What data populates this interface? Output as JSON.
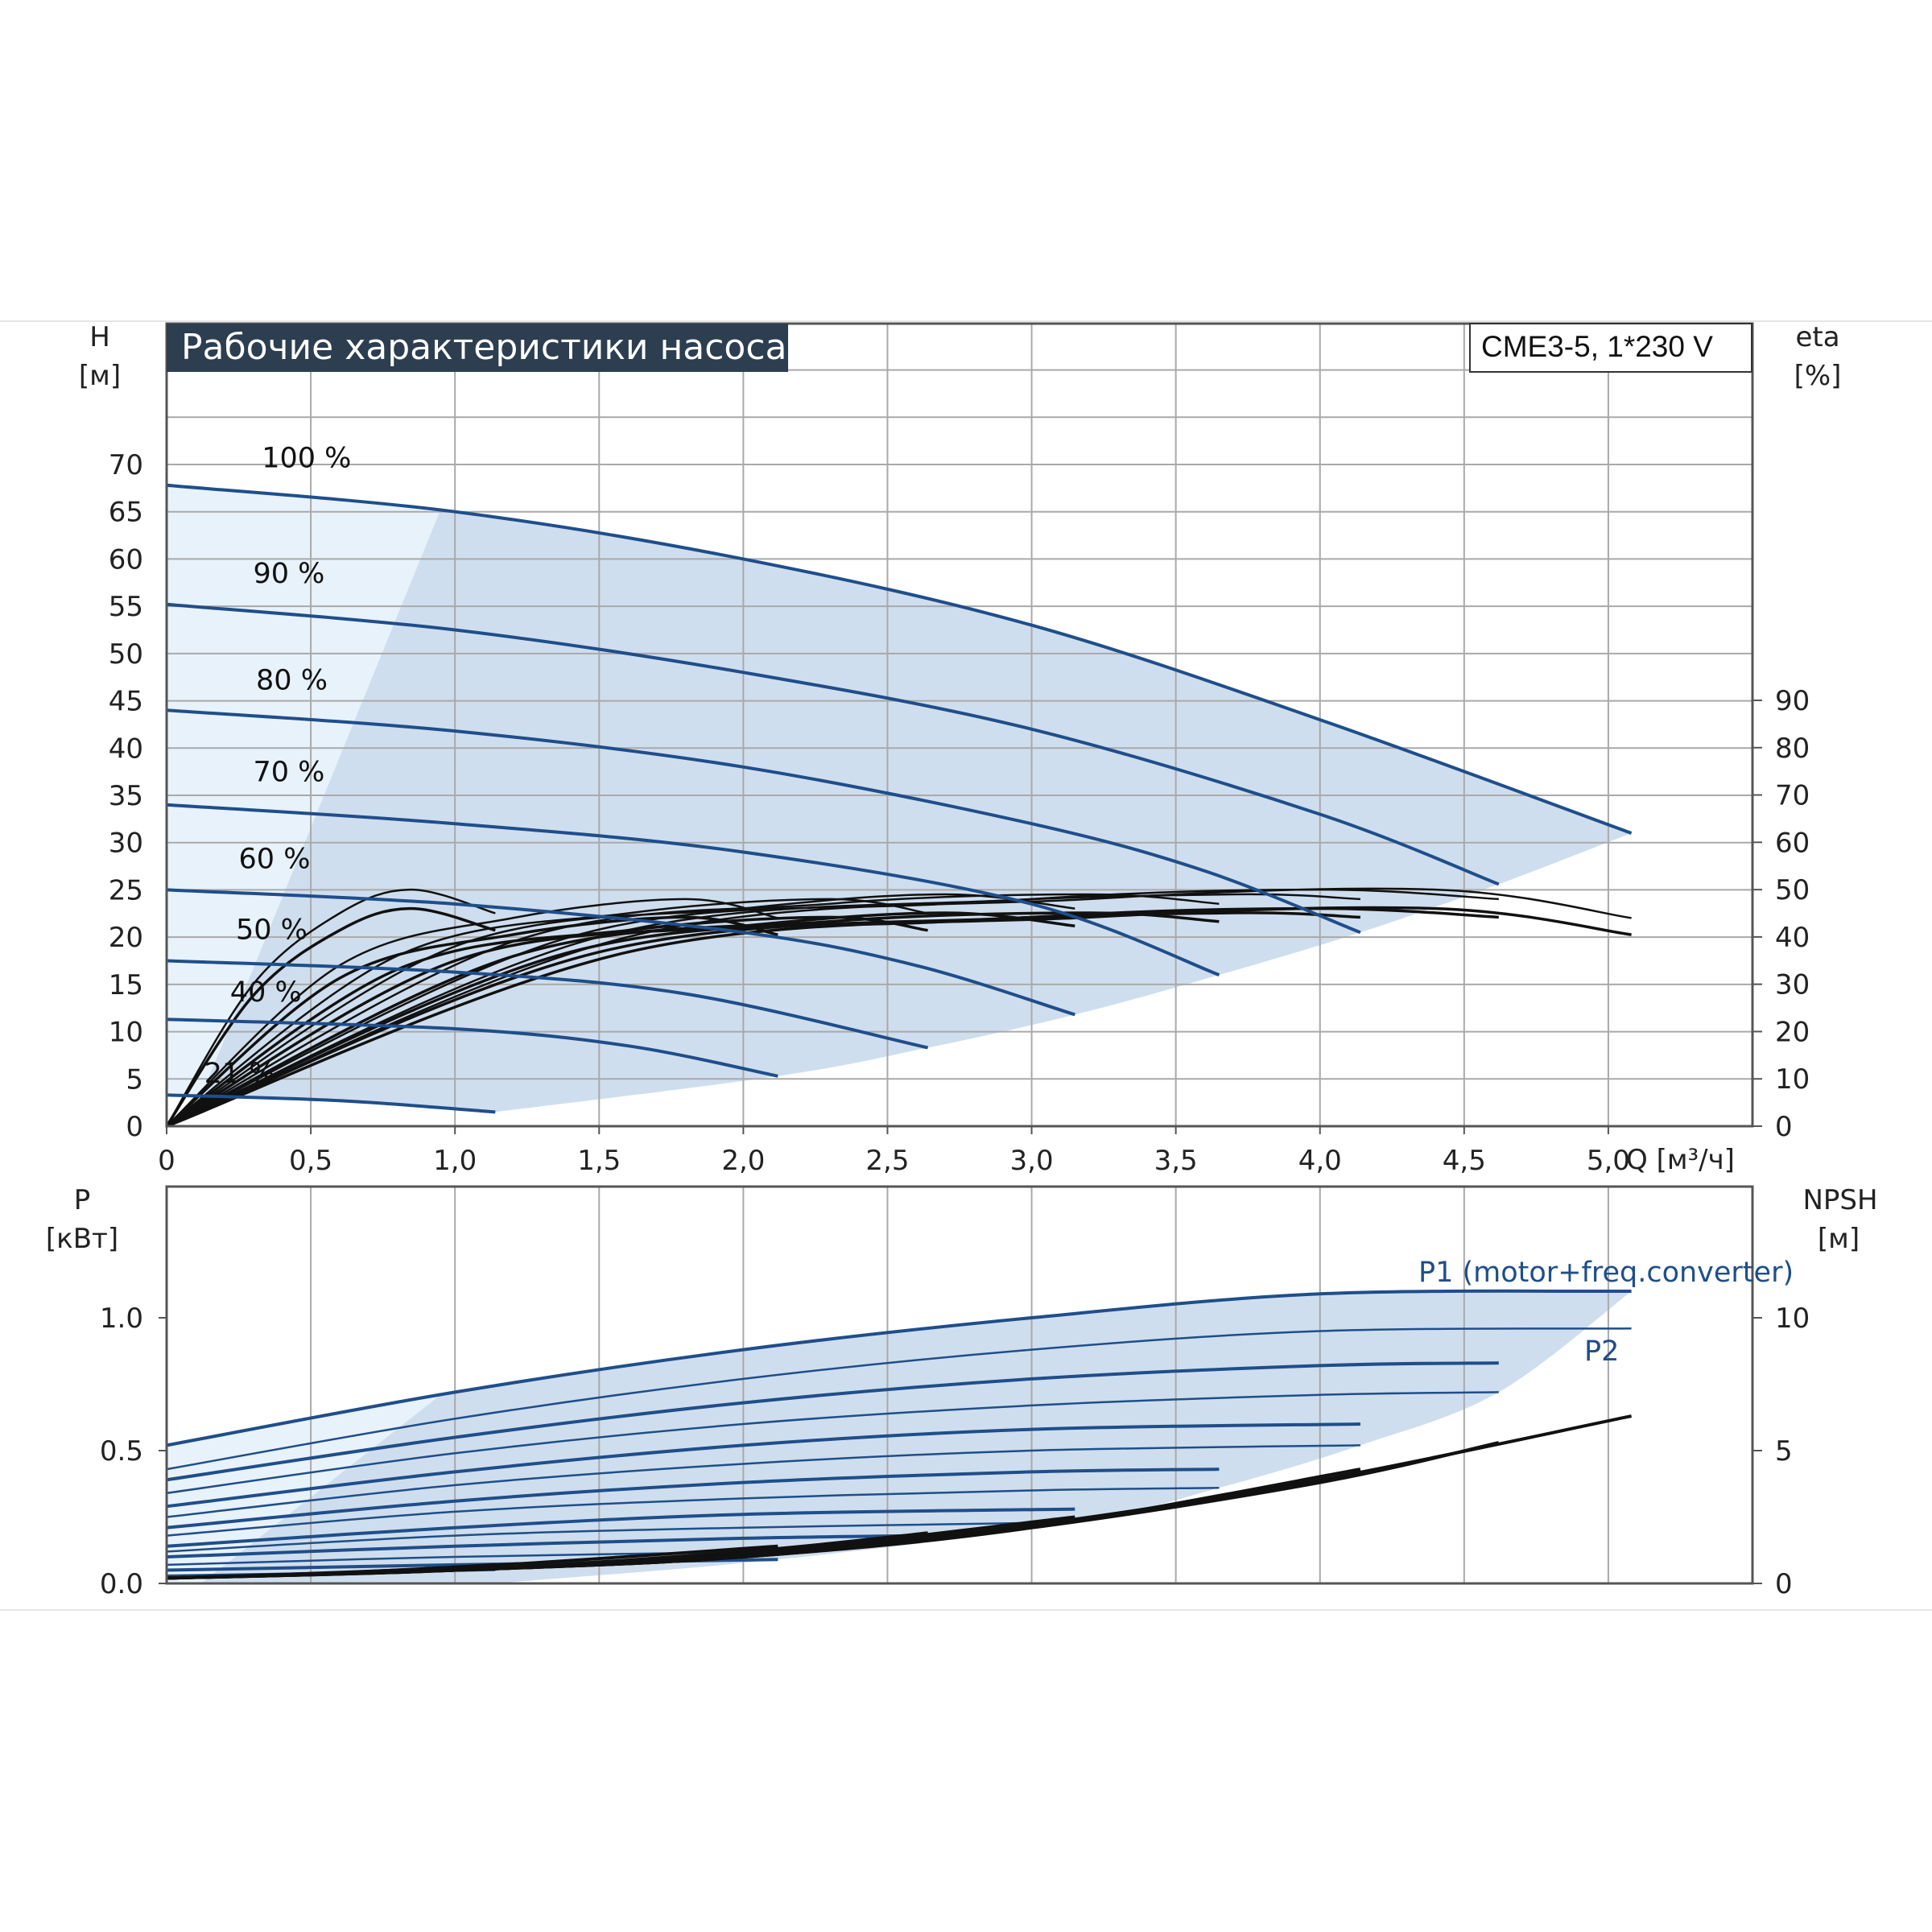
{
  "chart_data": [
    {
      "type": "line",
      "title": "Рабочие характеристики насоса",
      "model": "CME3-5, 1*230 V",
      "ylabel": "H",
      "yunit": "[м]",
      "y2label": "eta",
      "y2unit": "[%]",
      "xlabel": "Q [м³/ч]",
      "xlim": [
        0,
        5.5
      ],
      "ylim": [
        0,
        70
      ],
      "y2lim": [
        0,
        90
      ],
      "grid": true,
      "x_ticks": [
        "0",
        "0,5",
        "1,0",
        "1,5",
        "2,0",
        "2,5",
        "3,0",
        "3,5",
        "4,0",
        "4,5",
        "5,0"
      ],
      "y_ticks": [
        "0",
        "5",
        "10",
        "15",
        "20",
        "25",
        "30",
        "35",
        "40",
        "45",
        "50",
        "55",
        "60",
        "65",
        "70"
      ],
      "y2_ticks": [
        "0",
        "10",
        "20",
        "30",
        "40",
        "50",
        "60",
        "70",
        "80",
        "90"
      ],
      "head_curves": [
        {
          "label": "100 %",
          "x": [
            0,
            1,
            2,
            3,
            4,
            5.08
          ],
          "y": [
            67.8,
            65,
            60,
            53,
            43,
            31
          ]
        },
        {
          "label": "90 %",
          "x": [
            0,
            1,
            2,
            3,
            4,
            4.62
          ],
          "y": [
            55.2,
            52.5,
            48,
            42,
            33,
            25.6
          ]
        },
        {
          "label": "80 %",
          "x": [
            0,
            1,
            2,
            3,
            3.6,
            4.14
          ],
          "y": [
            44,
            41.8,
            38,
            32,
            27,
            20.5
          ]
        },
        {
          "label": "70 %",
          "x": [
            0,
            1,
            2,
            3,
            3.65
          ],
          "y": [
            34,
            32,
            29,
            23.5,
            16
          ]
        },
        {
          "label": "60 %",
          "x": [
            0,
            1,
            2,
            2.6,
            3.15
          ],
          "y": [
            25,
            23.5,
            20.5,
            17,
            11.8
          ]
        },
        {
          "label": "50 %",
          "x": [
            0,
            1,
            1.8,
            2.64
          ],
          "y": [
            17.5,
            16.3,
            14,
            8.3
          ]
        },
        {
          "label": "40 %",
          "x": [
            0,
            1,
            1.6,
            2.12
          ],
          "y": [
            11.3,
            10.3,
            8.5,
            5.3
          ]
        },
        {
          "label": "21 %",
          "x": [
            0,
            0.6,
            1.14
          ],
          "y": [
            3.3,
            2.7,
            1.5
          ]
        }
      ],
      "efficiency_curves": [
        {
          "x": [
            0,
            0.3,
            0.6,
            0.85,
            1.14
          ],
          "eta": [
            0,
            30,
            45,
            50,
            45
          ]
        },
        {
          "x": [
            0,
            0.6,
            1.2,
            1.8,
            2.12
          ],
          "eta": [
            0,
            34,
            44,
            48,
            44
          ]
        },
        {
          "x": [
            0,
            0.8,
            1.6,
            2.3,
            2.64
          ],
          "eta": [
            0,
            36,
            45,
            48,
            45
          ]
        },
        {
          "x": [
            0,
            1,
            2,
            2.7,
            3.15
          ],
          "eta": [
            0,
            38,
            46,
            49,
            46
          ]
        },
        {
          "x": [
            0,
            1.2,
            2.3,
            3.2,
            3.65
          ],
          "eta": [
            0,
            39,
            47,
            49,
            47
          ]
        },
        {
          "x": [
            0,
            1.4,
            2.7,
            3.7,
            4.14
          ],
          "eta": [
            0,
            40,
            47,
            49,
            48
          ]
        },
        {
          "x": [
            0,
            1.5,
            3,
            4,
            4.62
          ],
          "eta": [
            0,
            40,
            48,
            50,
            48
          ]
        },
        {
          "x": [
            0,
            1.6,
            3.2,
            4.4,
            5.08
          ],
          "eta": [
            0,
            40,
            48,
            50,
            44
          ]
        }
      ]
    },
    {
      "type": "line",
      "ylabel": "P",
      "yunit": "[кВт]",
      "y2label": "NPSH",
      "y2unit": "[м]",
      "xlim": [
        0,
        5.5
      ],
      "ylim": [
        0,
        1.5
      ],
      "y2lim": [
        0,
        15
      ],
      "grid": true,
      "y_ticks": [
        "0.0",
        "0.5",
        "1.0"
      ],
      "y2_ticks": [
        "0",
        "5",
        "10"
      ],
      "series_labels": [
        "P1 (motor+freq.converter)",
        "P2"
      ],
      "power_curves": [
        {
          "x": [
            0,
            1,
            2,
            3,
            4,
            5.08
          ],
          "y": [
            0.52,
            0.72,
            0.88,
            1.0,
            1.09,
            1.1
          ]
        },
        {
          "x": [
            0,
            1,
            2,
            3,
            4,
            5.08
          ],
          "y": [
            0.43,
            0.62,
            0.77,
            0.88,
            0.95,
            0.96
          ]
        },
        {
          "x": [
            0,
            1,
            2,
            3,
            4,
            4.62
          ],
          "y": [
            0.39,
            0.55,
            0.68,
            0.77,
            0.82,
            0.83
          ]
        },
        {
          "x": [
            0,
            1,
            2,
            3,
            4,
            4.62
          ],
          "y": [
            0.34,
            0.49,
            0.6,
            0.67,
            0.71,
            0.72
          ]
        },
        {
          "x": [
            0,
            1,
            2,
            3,
            4.14
          ],
          "y": [
            0.29,
            0.42,
            0.52,
            0.58,
            0.6
          ]
        },
        {
          "x": [
            0,
            1,
            2,
            3,
            4.14
          ],
          "y": [
            0.25,
            0.37,
            0.45,
            0.5,
            0.52
          ]
        },
        {
          "x": [
            0,
            1,
            2,
            3,
            3.65
          ],
          "y": [
            0.21,
            0.31,
            0.38,
            0.42,
            0.43
          ]
        },
        {
          "x": [
            0,
            1,
            2,
            3,
            3.65
          ],
          "y": [
            0.18,
            0.27,
            0.32,
            0.35,
            0.36
          ]
        },
        {
          "x": [
            0,
            1,
            2,
            3.15
          ],
          "y": [
            0.14,
            0.21,
            0.26,
            0.28
          ]
        },
        {
          "x": [
            0,
            1,
            2,
            3.15
          ],
          "y": [
            0.12,
            0.18,
            0.21,
            0.23
          ]
        },
        {
          "x": [
            0,
            1,
            2,
            2.64
          ],
          "y": [
            0.1,
            0.14,
            0.17,
            0.18
          ]
        },
        {
          "x": [
            0,
            1,
            2.12
          ],
          "y": [
            0.07,
            0.1,
            0.12
          ]
        },
        {
          "x": [
            0,
            1,
            2.12
          ],
          "y": [
            0.05,
            0.07,
            0.09
          ]
        },
        {
          "x": [
            0,
            0.6,
            1.14
          ],
          "y": [
            0.03,
            0.04,
            0.05
          ]
        }
      ],
      "npsh_curves": [
        {
          "x": [
            0,
            1,
            2,
            3,
            4,
            5.08
          ],
          "npsh": [
            0.2,
            0.5,
            1.1,
            2.2,
            3.9,
            6.3
          ]
        },
        {
          "x": [
            0,
            1,
            2,
            3,
            4,
            4.62
          ],
          "npsh": [
            0.2,
            0.5,
            1.0,
            2.1,
            3.8,
            5.3
          ]
        },
        {
          "x": [
            0,
            1,
            2,
            3,
            4.14
          ],
          "npsh": [
            0.2,
            0.5,
            1.0,
            2.1,
            4.3
          ]
        },
        {
          "x": [
            0,
            1,
            2,
            3,
            3.65
          ],
          "npsh": [
            0.2,
            0.5,
            1.0,
            2.1,
            3.3
          ]
        },
        {
          "x": [
            0,
            1,
            2,
            3.15
          ],
          "npsh": [
            0.2,
            0.5,
            1.1,
            2.5
          ]
        },
        {
          "x": [
            0,
            1,
            2,
            2.64
          ],
          "npsh": [
            0.2,
            0.5,
            1.2,
            1.9
          ]
        },
        {
          "x": [
            0,
            1,
            2.12
          ],
          "npsh": [
            0.2,
            0.6,
            1.4
          ]
        },
        {
          "x": [
            0,
            0.6,
            1.14
          ],
          "npsh": [
            0.2,
            0.4,
            0.7
          ]
        }
      ]
    }
  ],
  "colors": {
    "curve_blue": "#1f4e8a",
    "area_fill": "#cfdeee",
    "area_light": "#e8f2fb",
    "grid": "#a9a9a9",
    "title_bg": "#2c3e50"
  }
}
